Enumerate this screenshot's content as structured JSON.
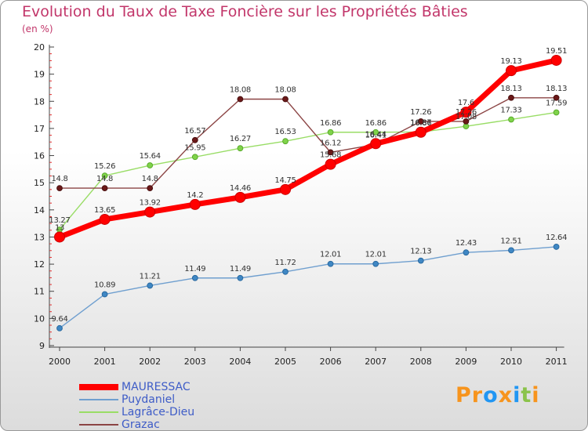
{
  "chart_data": {
    "type": "line",
    "title": "Evolution du Taux de Taxe Foncière sur les Propriétés Bâties",
    "ylabel": "(en %)",
    "xlabel": "",
    "ylim": [
      9,
      20
    ],
    "yticks": [
      "9",
      "10",
      "11",
      "12",
      "13",
      "14",
      "15",
      "16",
      "17",
      "18",
      "19",
      "20"
    ],
    "categories": [
      "2000",
      "2001",
      "2002",
      "2003",
      "2004",
      "2005",
      "2006",
      "2007",
      "2008",
      "2009",
      "2010",
      "2011"
    ],
    "series": [
      {
        "name": "MAURESSAC",
        "color": "#ff0000",
        "values": [
          13,
          13.65,
          13.92,
          14.2,
          14.46,
          14.75,
          15.68,
          16.44,
          16.86,
          17.6,
          19.13,
          19.51
        ],
        "labels": [
          "13",
          "13.65",
          "13.92",
          "14.2",
          "14.46",
          "14.75",
          "15.68",
          "16.44",
          "16.86",
          "17.6",
          "19.13",
          "19.51"
        ]
      },
      {
        "name": "Puydaniel",
        "color": "#6f9fcf",
        "values": [
          9.64,
          10.89,
          11.21,
          11.49,
          11.49,
          11.72,
          12.01,
          12.01,
          12.13,
          12.43,
          12.51,
          12.64
        ],
        "labels": [
          "9.64",
          "10.89",
          "11.21",
          "11.49",
          "11.49",
          "11.72",
          "12.01",
          "12.01",
          "12.13",
          "12.43",
          "12.51",
          "12.64"
        ]
      },
      {
        "name": "Lagrâce-Dieu",
        "color": "#99dd66",
        "values": [
          13.27,
          15.26,
          15.64,
          15.95,
          16.27,
          16.53,
          16.86,
          16.86,
          16.87,
          17.08,
          17.33,
          17.59
        ],
        "labels": [
          "13.27",
          "15.26",
          "15.64",
          "15.95",
          "16.27",
          "16.53",
          "16.86",
          "16.86",
          "16.87",
          "17.08",
          "17.33",
          "17.59"
        ]
      },
      {
        "name": "Grazac",
        "color": "#8b4444",
        "values": [
          14.8,
          14.8,
          14.8,
          16.57,
          18.08,
          18.08,
          16.12,
          16.41,
          17.26,
          17.26,
          18.13,
          18.13
        ],
        "labels": [
          "14.8",
          "14.8",
          "14.8",
          "16.57",
          "18.08",
          "18.08",
          "16.12",
          "16.41",
          "17.26",
          "17.26",
          "18.13",
          "18.13"
        ]
      }
    ],
    "legend": "bottom-left"
  },
  "brand": {
    "text": "Proxiti",
    "letter_colors": [
      "#f7941d",
      "#f7941d",
      "#2196f3",
      "#f7941d",
      "#2196f3",
      "#8bc34a",
      "#f7941d"
    ]
  }
}
